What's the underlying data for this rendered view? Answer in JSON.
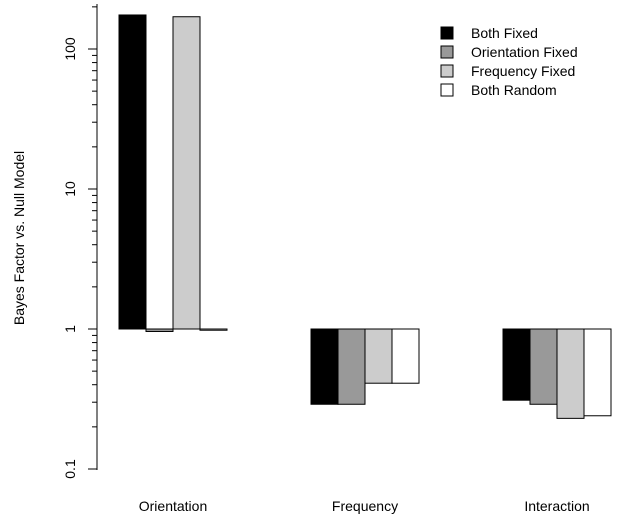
{
  "chart_data": {
    "type": "bar",
    "ylabel": "Bayes Factor vs. Null Model",
    "y_scale": "log",
    "ylim": [
      0.1,
      200
    ],
    "baseline": 1,
    "y_ticks": [
      {
        "value": 0.1,
        "label": "0.1"
      },
      {
        "value": 1,
        "label": "1"
      },
      {
        "value": 10,
        "label": "10"
      },
      {
        "value": 100,
        "label": "100"
      }
    ],
    "categories": [
      "Orientation",
      "Frequency",
      "Interaction"
    ],
    "series": [
      {
        "name": "Both Fixed",
        "color": "#000000",
        "values": [
          175,
          0.29,
          0.31
        ]
      },
      {
        "name": "Orientation Fixed",
        "color": "#999999",
        "values": [
          0.96,
          0.29,
          0.29
        ]
      },
      {
        "name": "Frequency Fixed",
        "color": "#cccccc",
        "values": [
          170,
          0.41,
          0.23
        ]
      },
      {
        "name": "Both Random",
        "color": "#ffffff",
        "values": [
          0.98,
          0.41,
          0.24
        ]
      }
    ],
    "legend_position": "top-right",
    "grid": false
  }
}
